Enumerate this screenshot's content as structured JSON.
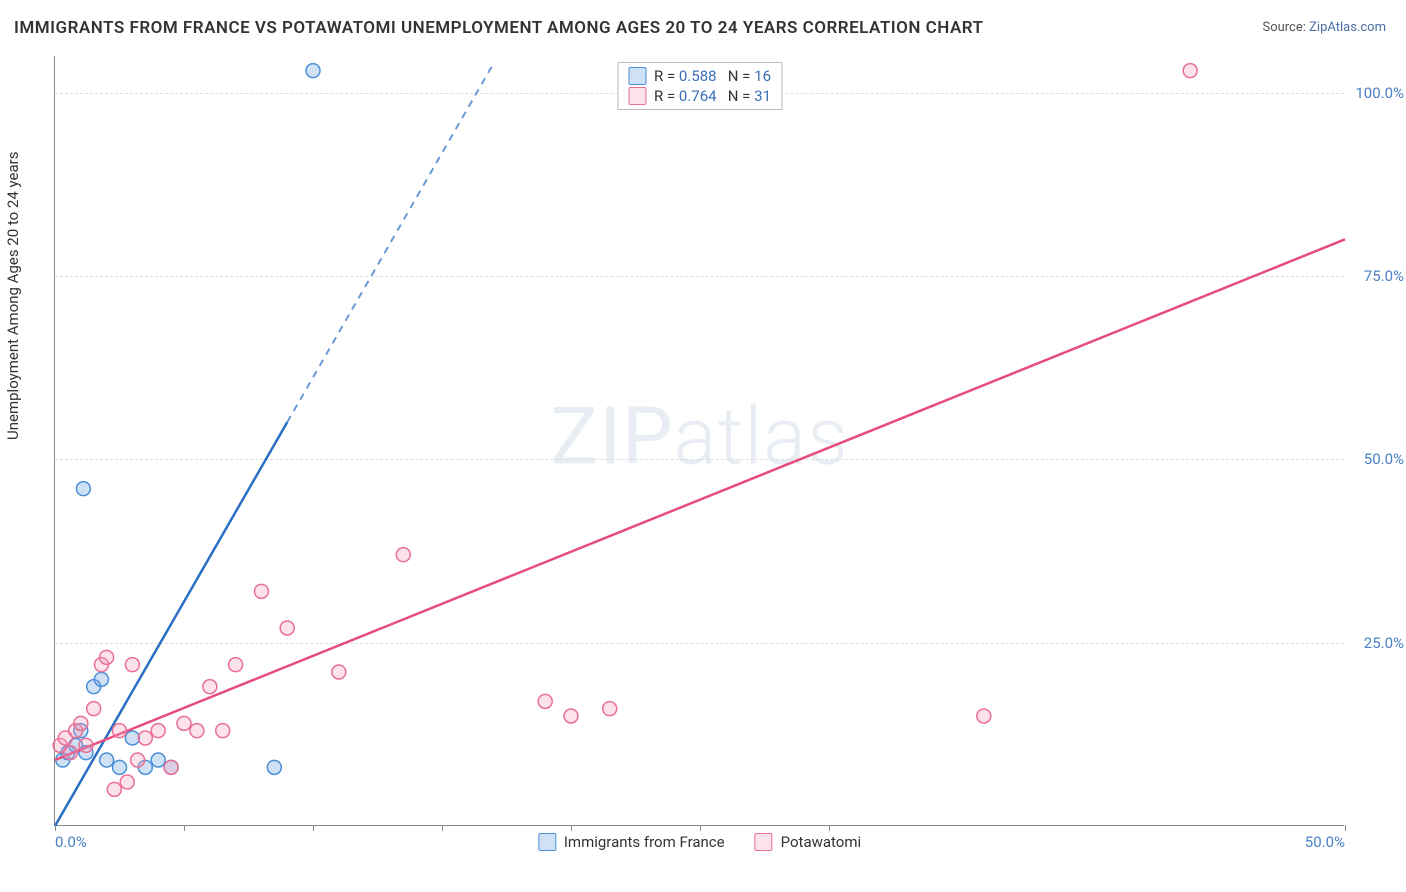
{
  "title": "IMMIGRANTS FROM FRANCE VS POTAWATOMI UNEMPLOYMENT AMONG AGES 20 TO 24 YEARS CORRELATION CHART",
  "source_label": "Source: ",
  "source_value": "ZipAtlas.com",
  "y_axis_label": "Unemployment Among Ages 20 to 24 years",
  "watermark_a": "ZIP",
  "watermark_b": "atlas",
  "chart": {
    "type": "scatter",
    "xlim": [
      0,
      50
    ],
    "ylim": [
      0,
      105
    ],
    "x_ticks": [
      0,
      5,
      10,
      15,
      20,
      25,
      30,
      50
    ],
    "x_tick_labels": {
      "0": "0.0%",
      "50": "50.0%"
    },
    "y_ticks": [
      25,
      50,
      75,
      100
    ],
    "y_tick_labels": [
      "25.0%",
      "50.0%",
      "75.0%",
      "100.0%"
    ],
    "grid_color": "#dddddd",
    "background_color": "#ffffff",
    "axis_color": "#888888",
    "tick_label_color": "#4a7fc4",
    "series": [
      {
        "name": "Immigrants from France",
        "color_stroke": "#4a8fd8",
        "color_fill": "rgba(120,170,225,0.35)",
        "line_color": "#2b6fc4",
        "marker_radius": 7,
        "r_value": "0.588",
        "n_value": "16",
        "trend": {
          "x1": 0,
          "y1": 0,
          "x2": 17,
          "y2": 104,
          "dash_after_x": 9
        },
        "points": [
          [
            0.3,
            9
          ],
          [
            0.5,
            10
          ],
          [
            0.8,
            11
          ],
          [
            1.0,
            13
          ],
          [
            1.2,
            10
          ],
          [
            1.5,
            19
          ],
          [
            1.8,
            20
          ],
          [
            2.0,
            9
          ],
          [
            2.5,
            8
          ],
          [
            3.0,
            12
          ],
          [
            3.5,
            8
          ],
          [
            4.0,
            9
          ],
          [
            4.5,
            8
          ],
          [
            8.5,
            8
          ],
          [
            1.1,
            46
          ],
          [
            10.0,
            103
          ]
        ]
      },
      {
        "name": "Potawatomi",
        "color_stroke": "#e86f95",
        "color_fill": "rgba(245,160,190,0.30)",
        "line_color": "#e64d7c",
        "marker_radius": 7,
        "r_value": "0.764",
        "n_value": "31",
        "trend": {
          "x1": 0,
          "y1": 9,
          "x2": 50,
          "y2": 80,
          "dash_after_x": 999
        },
        "points": [
          [
            0.2,
            11
          ],
          [
            0.4,
            12
          ],
          [
            0.6,
            10
          ],
          [
            0.8,
            13
          ],
          [
            1.0,
            14
          ],
          [
            1.2,
            11
          ],
          [
            1.5,
            16
          ],
          [
            1.8,
            22
          ],
          [
            2.0,
            23
          ],
          [
            2.3,
            5
          ],
          [
            2.5,
            13
          ],
          [
            3.0,
            22
          ],
          [
            3.2,
            9
          ],
          [
            3.5,
            12
          ],
          [
            4.0,
            13
          ],
          [
            4.5,
            8
          ],
          [
            5.0,
            14
          ],
          [
            5.5,
            13
          ],
          [
            6.0,
            19
          ],
          [
            6.5,
            13
          ],
          [
            7.0,
            22
          ],
          [
            8.0,
            32
          ],
          [
            9.0,
            27
          ],
          [
            11.0,
            21
          ],
          [
            13.5,
            37
          ],
          [
            19.0,
            17
          ],
          [
            20.0,
            15
          ],
          [
            21.5,
            16
          ],
          [
            36.0,
            15
          ],
          [
            44.0,
            103
          ],
          [
            2.8,
            6
          ]
        ]
      }
    ]
  }
}
